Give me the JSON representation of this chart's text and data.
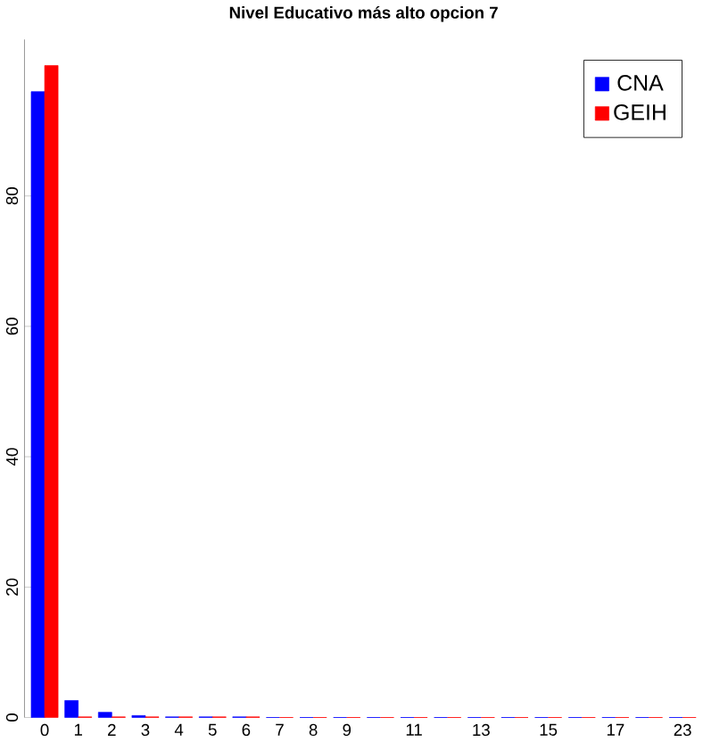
{
  "chart_data": {
    "type": "bar",
    "title": "Nivel Educativo más alto opcion 7",
    "categories": [
      "0",
      "1",
      "2",
      "3",
      "4",
      "5",
      "6",
      "7",
      "8",
      "9",
      null,
      "11",
      null,
      "13",
      null,
      "15",
      null,
      "17",
      null,
      "23"
    ],
    "series": [
      {
        "name": "CNA",
        "color": "#0000ff",
        "values": [
          96,
          2.6,
          0.8,
          0.3,
          0.1,
          0.1,
          0.1,
          0,
          0,
          0,
          0,
          0,
          0,
          0,
          0,
          0,
          0,
          0,
          0,
          0
        ]
      },
      {
        "name": "GEIH",
        "color": "#ff0000",
        "values": [
          100,
          0.1,
          0.1,
          0.1,
          0.1,
          0.1,
          0.1,
          0,
          0,
          0,
          0,
          0,
          0,
          0,
          0,
          0,
          0,
          0,
          0,
          0
        ]
      }
    ],
    "ylim": [
      0,
      104
    ],
    "yticks": [
      0,
      20,
      40,
      60,
      80
    ],
    "legend": "top right",
    "grid": false
  }
}
